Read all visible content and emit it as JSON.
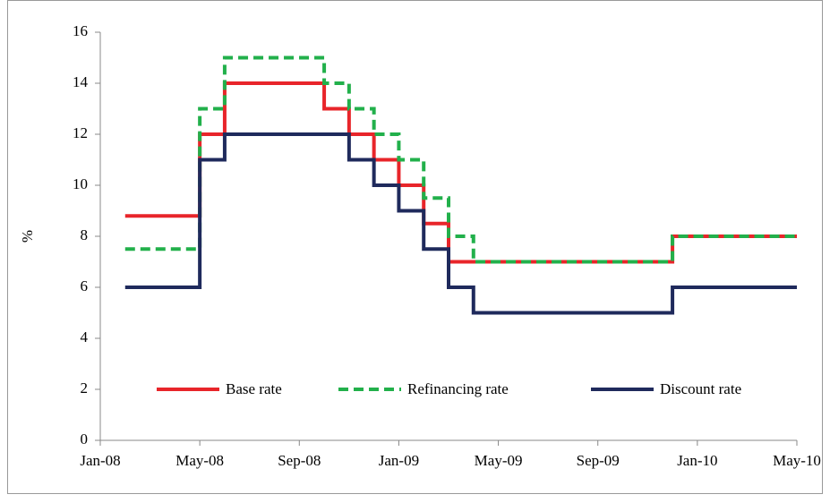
{
  "chart_data": {
    "type": "step",
    "ylabel": "%",
    "x": [
      "Feb-08",
      "May-08",
      "Jun-08",
      "Oct-08",
      "Nov-08",
      "Dec-08",
      "Jan-09",
      "Feb-09",
      "Mar-09",
      "Apr-09",
      "Dec-09",
      "May-10"
    ],
    "series": [
      {
        "name": "Base rate",
        "color": "#e8252a",
        "dashed": false,
        "values": [
          8.8,
          12,
          14,
          13,
          12,
          11,
          10,
          8.5,
          7,
          7,
          8,
          8
        ]
      },
      {
        "name": "Refinancing rate",
        "color": "#22b04b",
        "dashed": true,
        "values": [
          7.5,
          13,
          15,
          14,
          13,
          12,
          11,
          9.5,
          8,
          7,
          8,
          8
        ]
      },
      {
        "name": "Discount rate",
        "color": "#1f2a5c",
        "dashed": false,
        "values": [
          6,
          11,
          12,
          12,
          11,
          10,
          9,
          7.5,
          6,
          5,
          6,
          6
        ]
      }
    ],
    "xlim": [
      "Jan-08",
      "May-10"
    ],
    "xticks": [
      "Jan-08",
      "May-08",
      "Sep-08",
      "Jan-09",
      "May-09",
      "Sep-09",
      "Jan-10",
      "May-10"
    ],
    "ylim": [
      0,
      16
    ],
    "yticks": [
      0,
      2,
      4,
      6,
      8,
      10,
      12,
      14,
      16
    ],
    "grid": false,
    "legend": "lower center"
  }
}
